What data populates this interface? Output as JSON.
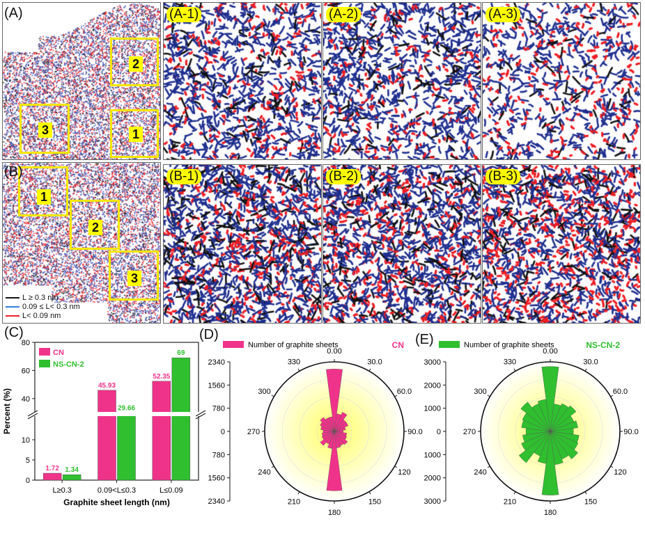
{
  "panel_labels": {
    "a": "(A)",
    "b": "(B)",
    "c": "(C)",
    "d": "(D)",
    "e": "(E)"
  },
  "tiles_a": [
    "(A-1)",
    "(A-2)",
    "(A-3)"
  ],
  "tiles_b": [
    "(B-1)",
    "(B-2)",
    "(B-3)"
  ],
  "boxes_a": [
    "1",
    "2",
    "3"
  ],
  "boxes_b": [
    "1",
    "2",
    "3"
  ],
  "length_legend": [
    {
      "label": "L ≥ 0.3 nm",
      "color": "#111111"
    },
    {
      "label": "0.09 ≤ L< 0.3 nm",
      "color": "#2e7fe0"
    },
    {
      "label": "L< 0.09 nm",
      "color": "#e8242b"
    }
  ],
  "colors": {
    "black": "#111111",
    "blue": "#1f2f8f",
    "red": "#ee1d23",
    "yellow": "#f5e600",
    "cn": "#f0338a",
    "nscn": "#2fbf2f"
  },
  "chart_data": [
    {
      "type": "bar",
      "panel": "(C)",
      "xlabel": "Graphite sheet length (nm)",
      "ylabel": "Percent (%)",
      "categories": [
        "L≥0.3",
        "0.09<L≤0.3",
        "L≤0.09"
      ],
      "series": [
        {
          "name": "CN",
          "values": [
            1.72,
            45.93,
            52.35
          ],
          "labels": [
            "1.72",
            "45.93",
            "52.35"
          ],
          "color": "#f0338a"
        },
        {
          "name": "NS-CN-2",
          "values": [
            1.34,
            29.66,
            69
          ],
          "labels": [
            "1.34",
            "29.66",
            "69"
          ],
          "color": "#2fbf2f"
        }
      ],
      "axis_break": true,
      "lower_ticks": [
        "0",
        "5",
        "10"
      ],
      "upper_ticks": [
        "40",
        "60",
        "80"
      ],
      "lower_range": [
        0,
        15
      ],
      "upper_range": [
        30,
        80
      ],
      "legend_position": "top-left"
    },
    {
      "type": "polar-bar",
      "panel": "(D)",
      "legend": "Number of graphite sheets",
      "title": "CN",
      "color": "#f0338a",
      "angle_labels": [
        "0.00",
        "30.0",
        "60.0",
        "90.0",
        "120",
        "150",
        "180",
        "210",
        "240",
        "270",
        "300",
        "330"
      ],
      "radial_ticks": [
        "2340",
        "1560",
        "780",
        "0",
        "780",
        "1560",
        "2340"
      ],
      "rmax": 2340,
      "bins_deg": [
        0,
        15,
        30,
        45,
        60,
        75,
        90,
        105,
        120,
        135,
        150,
        165,
        180,
        195,
        210,
        225,
        240,
        255,
        270,
        285,
        300,
        315,
        330,
        345
      ],
      "values": [
        2100,
        600,
        700,
        500,
        500,
        380,
        300,
        420,
        450,
        560,
        520,
        560,
        2000,
        580,
        460,
        600,
        450,
        420,
        380,
        460,
        520,
        600,
        500,
        500
      ]
    },
    {
      "type": "polar-bar",
      "panel": "(E)",
      "legend": "Number of graphite sheets",
      "title": "NS-CN-2",
      "color": "#2fbf2f",
      "angle_labels": [
        "0.00",
        "30.0",
        "60.0",
        "90.0",
        "120",
        "150",
        "180",
        "210",
        "240",
        "270",
        "300",
        "330"
      ],
      "radial_ticks": [
        "3000",
        "2000",
        "1000",
        "0",
        "1000",
        "2000",
        "3000"
      ],
      "rmax": 3000,
      "bins_deg": [
        0,
        15,
        30,
        45,
        60,
        75,
        90,
        105,
        120,
        135,
        150,
        165,
        180,
        195,
        210,
        225,
        240,
        255,
        270,
        285,
        300,
        315,
        330,
        345
      ],
      "values": [
        2800,
        1200,
        1300,
        1400,
        1100,
        1200,
        1000,
        1250,
        1300,
        1500,
        1300,
        1450,
        2750,
        1400,
        1150,
        1700,
        1350,
        1200,
        1050,
        1250,
        1300,
        1600,
        1300,
        1400
      ]
    }
  ]
}
